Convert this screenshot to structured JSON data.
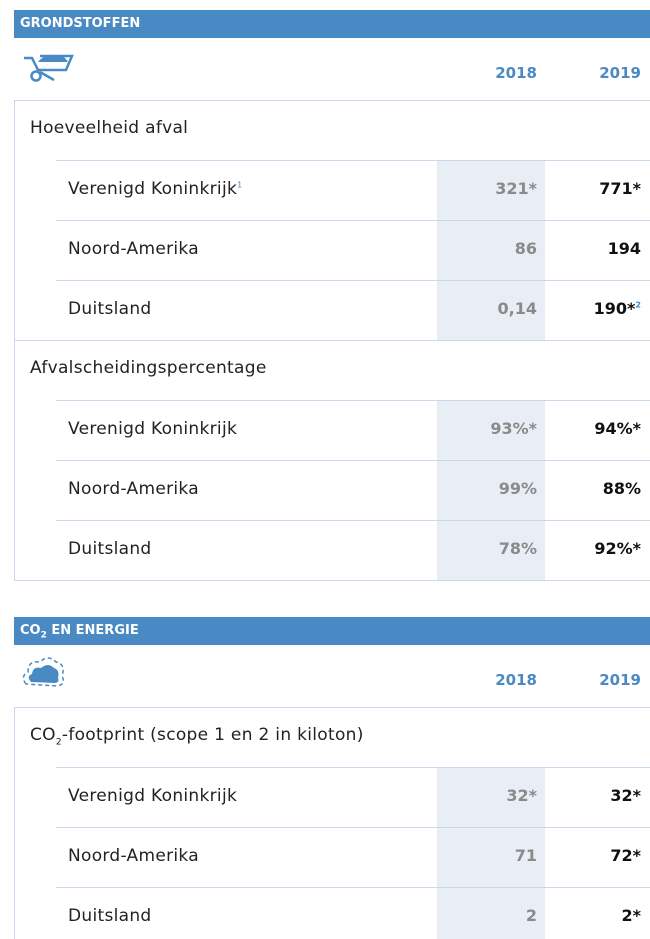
{
  "sections": [
    {
      "title": "GRONDSTOFFEN",
      "years": [
        "2018",
        "2019"
      ],
      "groups": [
        {
          "label": "Hoeveelheid afval",
          "rows": [
            {
              "name": "Verenigd Koninkrijk",
              "name_note": "1",
              "values": [
                "321*",
                "771*"
              ]
            },
            {
              "name": "Noord-Amerika",
              "values": [
                "86",
                "194"
              ]
            },
            {
              "name": "Duitsland",
              "values": [
                "0,14",
                "190*"
              ],
              "value_note": "2"
            }
          ]
        },
        {
          "label": "Afvalscheidingspercentage",
          "rows": [
            {
              "name": "Verenigd Koninkrijk",
              "values": [
                "93%*",
                "94%*"
              ]
            },
            {
              "name": "Noord-Amerika",
              "values": [
                "99%",
                "88%"
              ]
            },
            {
              "name": "Duitsland",
              "values": [
                "78%",
                "92%*"
              ]
            }
          ]
        }
      ]
    },
    {
      "title": "CO",
      "title_sub": "2",
      "title_rest": " EN ENERGIE",
      "years": [
        "2018",
        "2019"
      ],
      "groups": [
        {
          "label": "CO",
          "label_sub": "2",
          "label_rest": "-footprint (scope 1 en 2 in kiloton)",
          "rows": [
            {
              "name": "Verenigd Koninkrijk",
              "values": [
                "32*",
                "32*"
              ]
            },
            {
              "name": "Noord-Amerika",
              "values": [
                "71",
                "72*"
              ]
            },
            {
              "name": "Duitsland",
              "values": [
                "2",
                "2*"
              ]
            }
          ]
        }
      ]
    }
  ]
}
